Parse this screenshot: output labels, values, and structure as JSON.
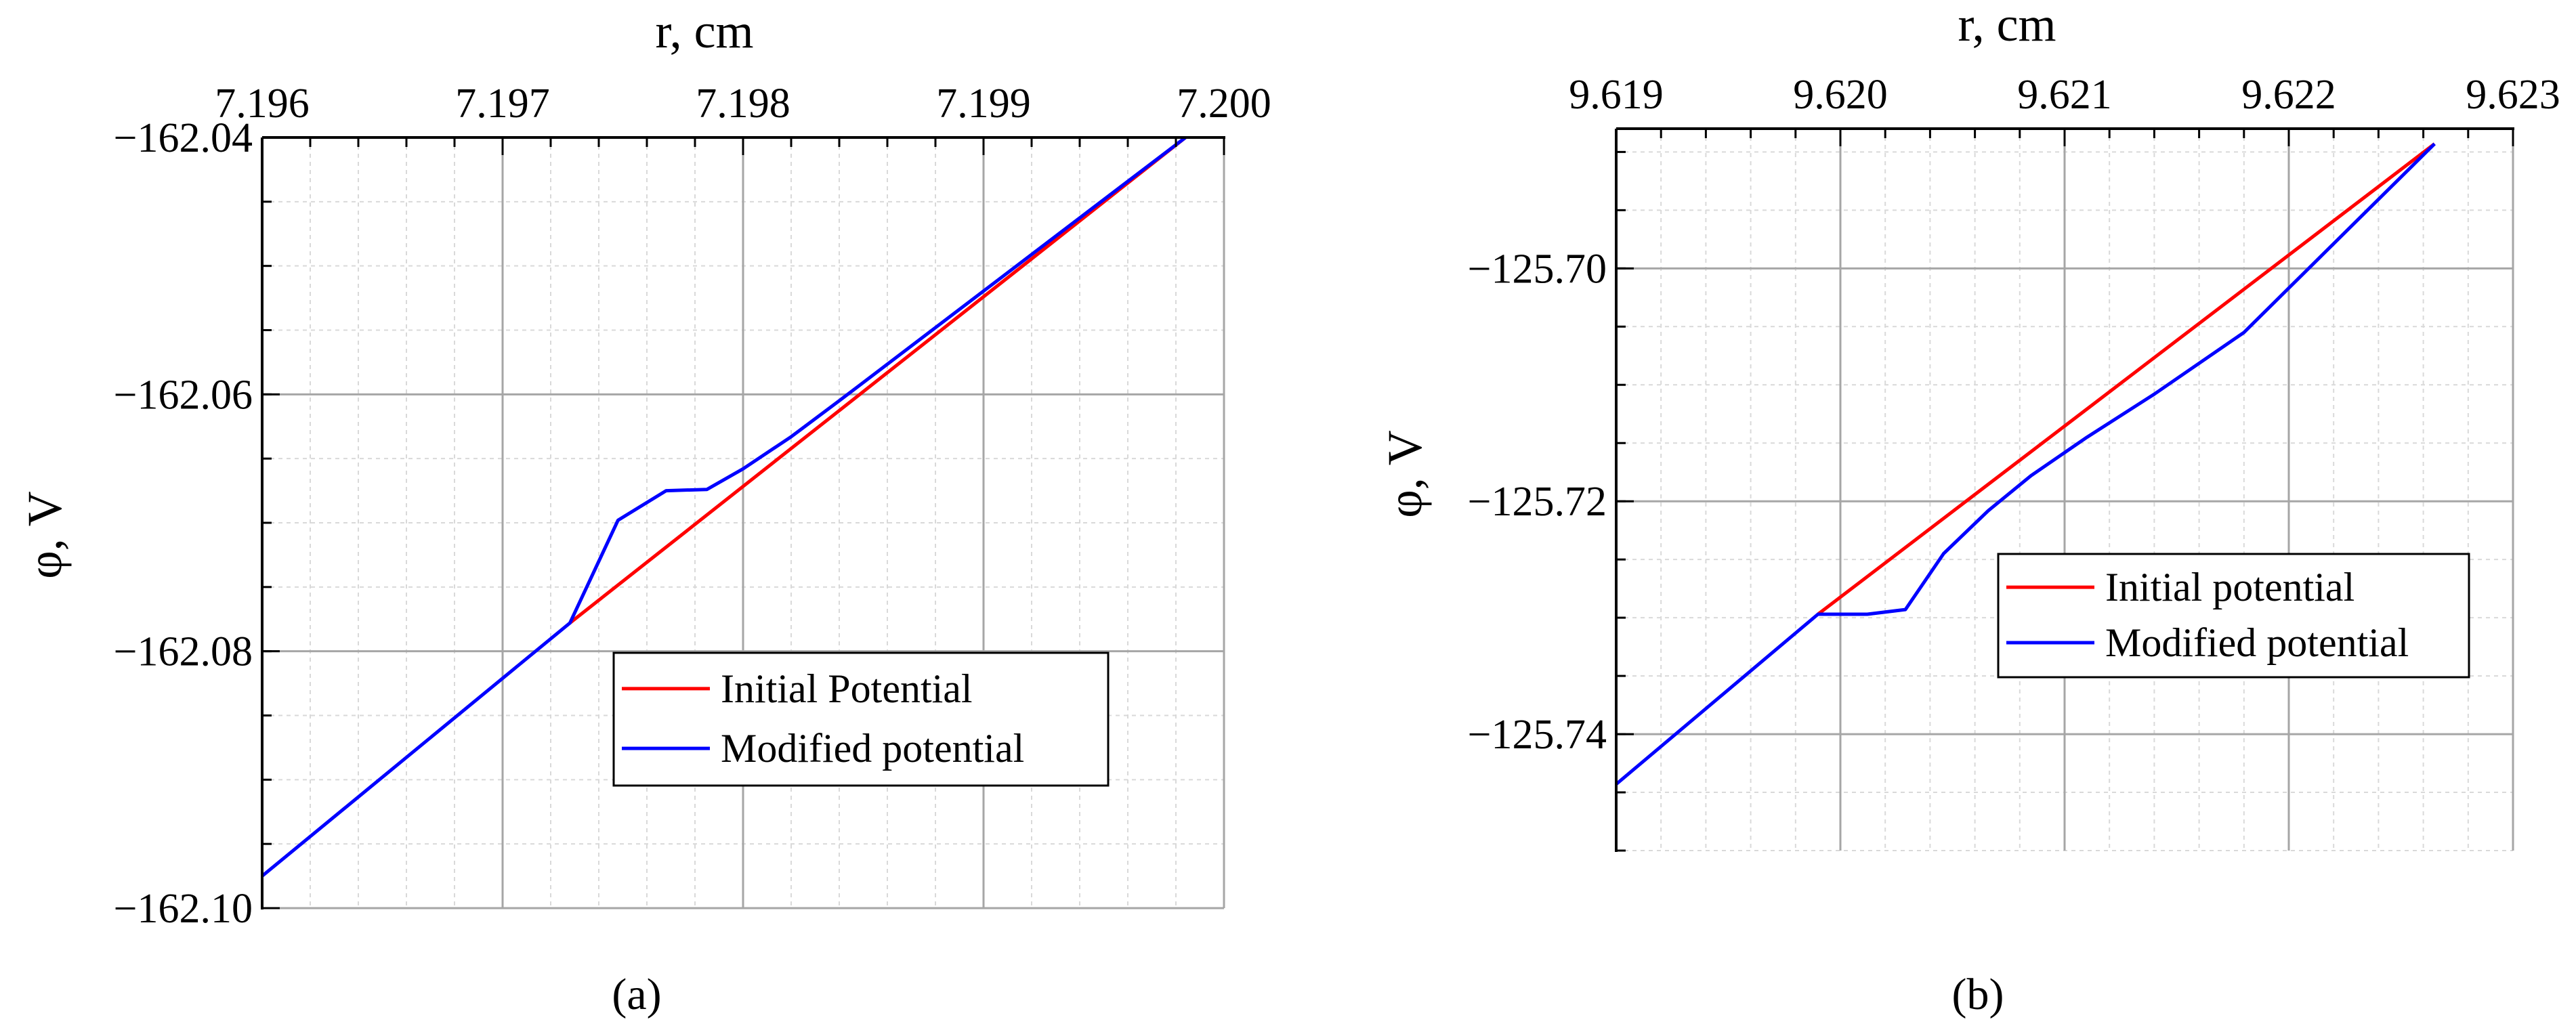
{
  "figure": {
    "captions": [
      "(a)",
      "(b)"
    ]
  },
  "chart_data": [
    {
      "type": "line",
      "panel": "(a)",
      "xlabel": "r, cm",
      "ylabel": "φ, V",
      "xlim": [
        7.196,
        7.2
      ],
      "ylim": [
        -162.1,
        -162.04
      ],
      "x_axis_position": "top",
      "xticks": [
        7.196,
        7.197,
        7.198,
        7.199,
        7.2
      ],
      "xtick_labels": [
        "7.196",
        "7.197",
        "7.198",
        "7.199",
        "7.200"
      ],
      "x_minor": 0.0002,
      "yticks": [
        -162.04,
        -162.06,
        -162.08,
        -162.1
      ],
      "ytick_labels": [
        "−162.04",
        "−162.06",
        "−162.08",
        "−162.10"
      ],
      "y_minor": 0.005,
      "grid": true,
      "legend_position": "lower-right",
      "series": [
        {
          "name": "Initial Potential",
          "color": "#ff0000",
          "x": [
            7.19728,
            7.19984
          ],
          "y": [
            -162.0778,
            -162.04
          ]
        },
        {
          "name": "Modified potential",
          "color": "#0000ff",
          "x": [
            7.196,
            7.19728,
            7.19748,
            7.19768,
            7.19785,
            7.198,
            7.1982,
            7.1984,
            7.19984
          ],
          "y": [
            -162.0975,
            -162.0778,
            -162.0698,
            -162.0675,
            -162.0674,
            -162.0658,
            -162.0633,
            -162.0605,
            -162.04
          ]
        }
      ]
    },
    {
      "type": "line",
      "panel": "(b)",
      "xlabel": "r, cm",
      "ylabel": "φ, V",
      "xlim": [
        9.619,
        9.623
      ],
      "ylim": [
        -125.75,
        -125.688
      ],
      "x_axis_position": "top",
      "xticks": [
        9.619,
        9.62,
        9.621,
        9.622,
        9.623
      ],
      "xtick_labels": [
        "9.619",
        "9.620",
        "9.621",
        "9.622",
        "9.623"
      ],
      "x_minor": 0.0002,
      "yticks": [
        -125.7,
        -125.72,
        -125.74
      ],
      "ytick_labels": [
        "−125.70",
        "−125.72",
        "−125.74"
      ],
      "y_minor": 0.005,
      "grid": true,
      "legend_position": "center-right",
      "series": [
        {
          "name": "Initial potential",
          "color": "#ff0000",
          "x": [
            9.6199,
            9.62265
          ],
          "y": [
            -125.7297,
            -125.6893
          ]
        },
        {
          "name": "Modified potential",
          "color": "#0000ff",
          "x": [
            9.619,
            9.6199,
            9.62012,
            9.62029,
            9.62046,
            9.62066,
            9.62085,
            9.6211,
            9.6214,
            9.6218,
            9.62265
          ],
          "y": [
            -125.7443,
            -125.7297,
            -125.7297,
            -125.7293,
            -125.7245,
            -125.7208,
            -125.7178,
            -125.7145,
            -125.7108,
            -125.7055,
            -125.6893
          ]
        }
      ]
    }
  ]
}
